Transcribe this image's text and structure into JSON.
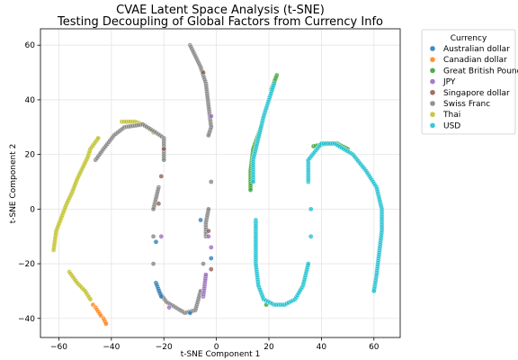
{
  "chart_data": {
    "type": "scatter",
    "title_line1": "CVAE Latent Space Analysis (t-SNE)",
    "title_line2": "Testing Decoupling of Global Factors from Currency Info",
    "xlabel": "t-SNE Component 1",
    "ylabel": "t-SNE Component 2",
    "xlim": [
      -67,
      70
    ],
    "ylim": [
      -47,
      66
    ],
    "xticks": [
      -60,
      -40,
      -20,
      0,
      20,
      40,
      60
    ],
    "yticks": [
      -40,
      -20,
      0,
      20,
      40,
      60
    ],
    "grid": true,
    "legend": {
      "title": "Currency",
      "placement": "outside-right",
      "entries": [
        {
          "name": "Australian dollar",
          "color": "#1f77b4"
        },
        {
          "name": "Canadian dollar",
          "color": "#ff7f0e"
        },
        {
          "name": "Great British Pound",
          "color": "#2ca02c"
        },
        {
          "name": "JPY",
          "color": "#9467bd"
        },
        {
          "name": "Singapore dollar",
          "color": "#8c564b"
        },
        {
          "name": "Swiss Franc",
          "color": "#7f7f7f"
        },
        {
          "name": "Thai",
          "color": "#bcbd22"
        },
        {
          "name": "USD",
          "color": "#17becf"
        }
      ]
    },
    "series": [
      {
        "name": "Thai",
        "color": "#bcbd22",
        "points": [
          [
            -62,
            -15
          ],
          [
            -61,
            -8
          ],
          [
            -59,
            -3
          ],
          [
            -57,
            2
          ],
          [
            -55,
            6
          ],
          [
            -53,
            11
          ],
          [
            -51,
            15
          ],
          [
            -49,
            19
          ],
          [
            -48,
            22
          ],
          [
            -45,
            26
          ],
          [
            -36,
            32
          ],
          [
            -31,
            32
          ],
          [
            -28,
            31
          ],
          [
            -25,
            29
          ],
          [
            -24,
            28
          ],
          [
            -56,
            -23
          ],
          [
            -53,
            -27
          ],
          [
            -50,
            -30
          ],
          [
            -48,
            -33
          ]
        ]
      },
      {
        "name": "Canadian dollar",
        "color": "#ff7f0e",
        "points": [
          [
            -47,
            -35
          ],
          [
            -46,
            -36
          ],
          [
            -44,
            -39
          ],
          [
            -43,
            -40
          ],
          [
            -42,
            -42
          ]
        ]
      },
      {
        "name": "Swiss Franc",
        "color": "#7f7f7f",
        "points": [
          [
            -46,
            18
          ],
          [
            -43,
            22
          ],
          [
            -39,
            27
          ],
          [
            -35,
            30
          ],
          [
            -28,
            31
          ],
          [
            -23,
            28
          ],
          [
            -20,
            26
          ],
          [
            -20,
            18
          ],
          [
            -22,
            8
          ],
          [
            -24,
            0
          ],
          [
            -24,
            -10
          ],
          [
            -24,
            -20
          ],
          [
            -22,
            -30
          ],
          [
            -19,
            -34
          ],
          [
            -12,
            -38
          ],
          [
            -8,
            -37
          ],
          [
            -6,
            -30
          ],
          [
            -5,
            -20
          ],
          [
            -4,
            -10
          ],
          [
            -4,
            -5
          ],
          [
            -3,
            0
          ],
          [
            -2,
            10
          ],
          [
            -10,
            60
          ],
          [
            -8,
            56
          ],
          [
            -6,
            52
          ],
          [
            -4,
            46
          ],
          [
            -3,
            38
          ],
          [
            -2,
            30
          ],
          [
            -3,
            27
          ]
        ]
      },
      {
        "name": "Singapore dollar",
        "color": "#8c564b",
        "points": [
          [
            -20,
            22
          ],
          [
            -21,
            12
          ],
          [
            -22,
            2
          ],
          [
            -3,
            -8
          ],
          [
            -2,
            -22
          ],
          [
            -5,
            50
          ]
        ]
      },
      {
        "name": "JPY",
        "color": "#9467bd",
        "points": [
          [
            -18,
            -36
          ],
          [
            -5,
            -32
          ],
          [
            -4,
            -24
          ],
          [
            -3,
            -10
          ],
          [
            -2,
            34
          ],
          [
            -21,
            -10
          ],
          [
            -2,
            -14
          ]
        ]
      },
      {
        "name": "Australian dollar",
        "color": "#1f77b4",
        "points": [
          [
            -23,
            -12
          ],
          [
            -23,
            -27
          ],
          [
            -21,
            -32
          ],
          [
            -10,
            -38
          ],
          [
            -2,
            -18
          ],
          [
            -6,
            -4
          ]
        ]
      },
      {
        "name": "Great British Pound",
        "color": "#2ca02c",
        "points": [
          [
            23,
            49
          ],
          [
            21,
            44
          ],
          [
            17,
            30
          ],
          [
            14,
            22
          ],
          [
            13,
            14
          ],
          [
            13,
            7
          ],
          [
            37,
            23
          ],
          [
            42,
            24
          ],
          [
            46,
            24
          ],
          [
            50,
            22
          ],
          [
            19,
            -35
          ]
        ]
      },
      {
        "name": "USD",
        "color": "#17becf",
        "points": [
          [
            22,
            46
          ],
          [
            20,
            40
          ],
          [
            18,
            34
          ],
          [
            16,
            26
          ],
          [
            14,
            18
          ],
          [
            14,
            10
          ],
          [
            15,
            -4
          ],
          [
            15,
            -12
          ],
          [
            15,
            -20
          ],
          [
            16,
            -28
          ],
          [
            18,
            -33
          ],
          [
            22,
            -35
          ],
          [
            26,
            -35
          ],
          [
            30,
            -33
          ],
          [
            33,
            -28
          ],
          [
            35,
            -20
          ],
          [
            36,
            -10
          ],
          [
            36,
            0
          ],
          [
            35,
            10
          ],
          [
            35,
            18
          ],
          [
            40,
            24
          ],
          [
            45,
            24
          ],
          [
            52,
            20
          ],
          [
            57,
            14
          ],
          [
            61,
            8
          ],
          [
            63,
            0
          ],
          [
            63,
            -8
          ],
          [
            62,
            -16
          ],
          [
            61,
            -24
          ],
          [
            60,
            -30
          ]
        ]
      }
    ]
  }
}
